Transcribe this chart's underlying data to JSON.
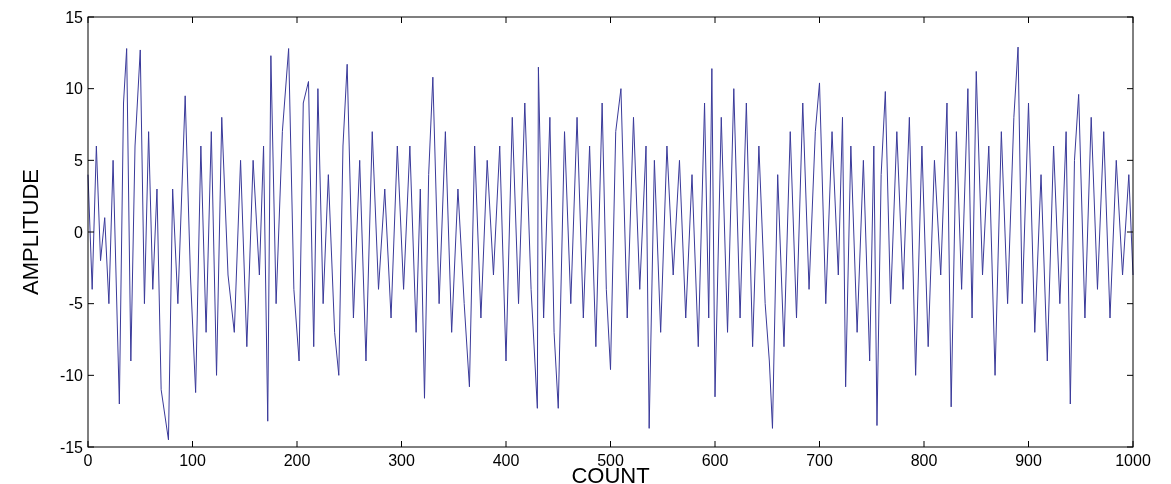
{
  "chart_data": {
    "type": "line",
    "xlabel": "COUNT",
    "ylabel": "AMPLITUDE",
    "xlim": [
      0,
      1000
    ],
    "ylim": [
      -15,
      15
    ],
    "xticks": [
      0,
      100,
      200,
      300,
      400,
      500,
      600,
      700,
      800,
      900,
      1000
    ],
    "yticks": [
      -15,
      -10,
      -5,
      0,
      5,
      10,
      15
    ],
    "grid": false,
    "line_style": "solid",
    "series": [
      {
        "color": "#3a3a9a",
        "x": [
          0,
          4,
          8,
          12,
          16,
          20,
          24,
          30,
          34,
          37,
          41,
          45,
          50,
          54,
          58,
          62,
          66,
          70,
          77,
          81,
          86,
          93,
          98,
          103,
          108,
          113,
          118,
          123,
          128,
          134,
          140,
          146,
          152,
          158,
          164,
          168,
          172,
          175,
          180,
          186,
          192,
          197,
          202,
          206,
          211,
          216,
          220,
          225,
          230,
          236,
          240,
          244,
          248,
          254,
          260,
          266,
          272,
          278,
          284,
          290,
          296,
          302,
          308,
          314,
          318,
          322,
          326,
          330,
          336,
          342,
          348,
          354,
          360,
          365,
          370,
          376,
          382,
          388,
          394,
          400,
          406,
          412,
          418,
          424,
          430,
          431,
          436,
          442,
          446,
          450,
          456,
          462,
          468,
          474,
          480,
          486,
          492,
          496,
          500,
          505,
          510,
          516,
          522,
          528,
          534,
          537,
          542,
          548,
          554,
          560,
          566,
          572,
          578,
          584,
          590,
          594,
          597,
          600,
          606,
          612,
          618,
          624,
          630,
          636,
          642,
          648,
          652,
          655,
          660,
          666,
          672,
          678,
          684,
          690,
          696,
          700,
          706,
          712,
          718,
          722,
          725,
          730,
          736,
          742,
          748,
          752,
          755,
          759,
          763,
          768,
          774,
          780,
          786,
          792,
          798,
          804,
          810,
          816,
          822,
          826,
          831,
          836,
          842,
          846,
          850,
          856,
          862,
          868,
          874,
          880,
          886,
          890,
          894,
          900,
          906,
          912,
          918,
          924,
          930,
          936,
          940,
          944,
          948,
          954,
          960,
          966,
          972,
          978,
          984,
          990,
          996,
          1000
        ],
        "values": [
          4,
          -4,
          6,
          -2,
          1,
          -5,
          5,
          -12,
          9,
          12.8,
          -9,
          6,
          12.7,
          -5,
          7,
          -4,
          3,
          -11,
          -14.5,
          3,
          -5,
          9.5,
          -3,
          -11.2,
          6,
          -7,
          7,
          -10,
          8,
          -3,
          -7,
          5,
          -8,
          5,
          -3,
          6,
          -13.2,
          12.3,
          -5,
          7,
          12.8,
          -4,
          -9,
          9,
          10.5,
          -8,
          10,
          -5,
          4,
          -7,
          -10,
          6,
          11.7,
          -6,
          5,
          -9,
          7,
          -4,
          3,
          -6,
          6,
          -4,
          6,
          -7,
          3,
          -11.6,
          4,
          10.8,
          -5,
          7,
          -7,
          3,
          -5,
          -10.8,
          6,
          -6,
          5,
          -3,
          6,
          -9,
          8,
          -5,
          9,
          -4,
          -12.3,
          11.5,
          -6,
          8,
          -7,
          -12.3,
          7,
          -5,
          8,
          -6,
          6,
          -8,
          9,
          -4,
          -9.6,
          7,
          10,
          -6,
          8,
          -4,
          6,
          -13.7,
          5,
          -7,
          6,
          -3,
          5,
          -6,
          4,
          -8,
          9,
          -6,
          11.4,
          -11.5,
          8,
          -7,
          10,
          -6,
          9,
          -8,
          6,
          -5,
          -9,
          -13.7,
          4,
          -8,
          7,
          -6,
          9,
          -4,
          7,
          10.4,
          -5,
          7,
          -3,
          8,
          -10.8,
          6,
          -7,
          5,
          -9,
          6,
          -13.5,
          4,
          9.8,
          -5,
          7,
          -4,
          8,
          -10,
          6,
          -8,
          5,
          -3,
          9,
          -12.2,
          7,
          -4,
          10,
          -6,
          11.2,
          -3,
          6,
          -10,
          7,
          -5,
          8,
          12.9,
          -5,
          9,
          -7,
          4,
          -9,
          6,
          -5,
          7,
          -12,
          5,
          9.6,
          -6,
          8,
          -4,
          7,
          -6,
          5,
          -3,
          4,
          -3
        ]
      }
    ]
  }
}
